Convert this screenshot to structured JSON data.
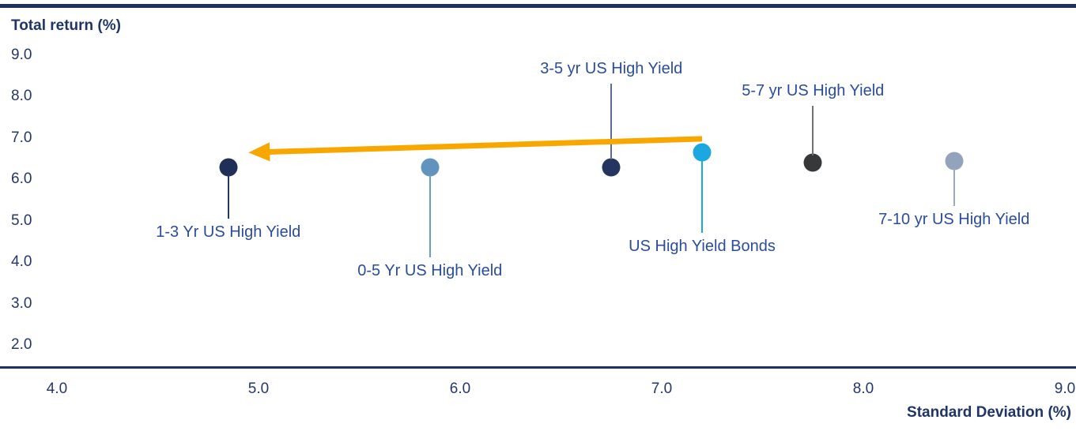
{
  "colors": {
    "rule_navy": "#1E3160",
    "axis_title_text": "#1E3565",
    "tick_text": "#25366B",
    "point_label_text": "#2A4C9C",
    "arrow_gold": "#F8A700",
    "background": "#FFFFFF"
  },
  "chart_data": {
    "type": "scatter",
    "title": "",
    "ylabel": "Total return (%)",
    "xlabel": "Standard Deviation (%)",
    "xlim": [
      4.0,
      9.0
    ],
    "ylim": [
      2.0,
      9.0
    ],
    "grid": false,
    "legend": "none (points labeled directly with leader lines)",
    "x_ticks": [
      {
        "value": 4.0,
        "label": "4.0"
      },
      {
        "value": 5.0,
        "label": "5.0"
      },
      {
        "value": 6.0,
        "label": "6.0"
      },
      {
        "value": 7.0,
        "label": "7.0"
      },
      {
        "value": 8.0,
        "label": "8.0"
      },
      {
        "value": 9.0,
        "label": "9.0"
      }
    ],
    "y_ticks": [
      {
        "value": 9.0,
        "label": "9.0"
      },
      {
        "value": 8.0,
        "label": "8.0"
      },
      {
        "value": 7.0,
        "label": "7.0"
      },
      {
        "value": 6.0,
        "label": "6.0"
      },
      {
        "value": 5.0,
        "label": "5.0"
      },
      {
        "value": 4.0,
        "label": "4.0"
      },
      {
        "value": 3.0,
        "label": "3.0"
      },
      {
        "value": 2.0,
        "label": "2.0"
      }
    ],
    "points": [
      {
        "label": "1-3 Yr US High Yield",
        "x": 4.85,
        "y": 6.3,
        "dot_color": "#1F2F55",
        "leader_color": "#24365F",
        "label_side": "below",
        "leader_len": 65
      },
      {
        "label": "0-5 Yr US High Yield",
        "x": 5.85,
        "y": 6.3,
        "dot_color": "#6094BE",
        "leader_color": "#6B9CC4",
        "label_side": "below",
        "leader_len": 114
      },
      {
        "label": "3-5 yr US High Yield",
        "x": 6.75,
        "y": 6.3,
        "dot_color": "#24365F",
        "leader_color": "#5A6C90",
        "label_side": "above",
        "leader_len": 106
      },
      {
        "label": "US High Yield Bonds",
        "x": 7.2,
        "y": 6.65,
        "dot_color": "#1BA7E0",
        "leader_color": "#1BA7E0",
        "label_side": "below",
        "leader_len": 102
      },
      {
        "label": "5-7 yr US High Yield",
        "x": 7.75,
        "y": 6.4,
        "dot_color": "#37383A",
        "leader_color": "#6F7276",
        "label_side": "above",
        "leader_len": 72
      },
      {
        "label": "7-10 yr US High Yield",
        "x": 8.45,
        "y": 6.45,
        "dot_color": "#94A3BC",
        "leader_color": "#9BA9C0",
        "label_side": "below",
        "leader_len": 57
      }
    ],
    "arrow": {
      "meaning": "points from US High Yield Bonds toward 1-3 Yr US High Yield (shorter duration, similar return, lower standard deviation)",
      "from_x": 7.2,
      "from_y": 6.98,
      "to_x": 4.95,
      "to_y": 6.65,
      "color": "#F8A700"
    }
  }
}
